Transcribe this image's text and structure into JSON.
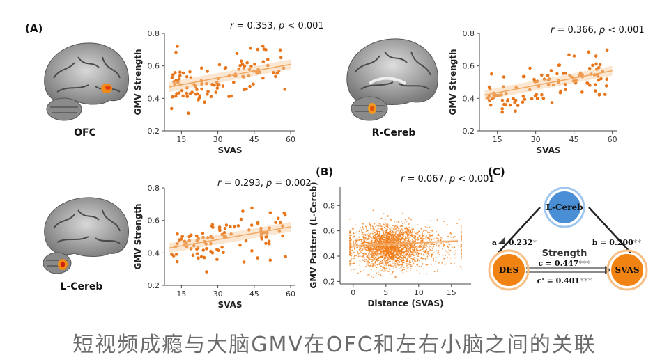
{
  "panels": {
    "A": {
      "letter": "(A)"
    },
    "B": {
      "letter": "(B)"
    },
    "C": {
      "letter": "(C)"
    }
  },
  "brains": [
    {
      "label": "OFC"
    },
    {
      "label": "R-Cereb"
    },
    {
      "label": "L-Cereb"
    }
  ],
  "scatters": [
    {
      "stat": {
        "r_label": "r",
        "r_value": "= 0.353,",
        "p_label": "p",
        "p_value": "< 0.001"
      },
      "xlabel": "SVAS",
      "ylabel": "GMV Strength"
    },
    {
      "stat": {
        "r_label": "r",
        "r_value": "= 0.366,",
        "p_label": "p",
        "p_value": "< 0.001"
      },
      "xlabel": "SVAS",
      "ylabel": "GMV Strength"
    },
    {
      "stat": {
        "r_label": "r",
        "r_value": "= 0.293,",
        "p_label": "p",
        "p_value": "= 0.002"
      },
      "xlabel": "SVAS",
      "ylabel": "GMV Strength"
    },
    {
      "stat": {
        "r_label": "r",
        "r_value": "= 0.067,",
        "p_label": "p",
        "p_value": "< 0.001"
      },
      "xlabel": "Distance (SVAS)",
      "ylabel": "GMV Pattern (L-Cereb)"
    }
  ],
  "chart_data": [
    {
      "type": "scatter",
      "title": "",
      "xlabel": "SVAS",
      "ylabel": "GMV Strength",
      "xlim": [
        8,
        62
      ],
      "ylim": [
        0.2,
        0.8
      ],
      "xticks": [
        "15",
        "30",
        "45",
        "60"
      ],
      "yticks": [
        "0.2",
        "0.4",
        "0.6",
        "0.8"
      ],
      "fit": {
        "x": [
          10,
          60
        ],
        "y": [
          0.47,
          0.61
        ]
      },
      "color": "#e8751a",
      "seed": 11,
      "n": 110,
      "x_range": [
        10,
        58
      ],
      "y_center": 0.53,
      "y_spread": 0.07,
      "slope": 0.0028
    },
    {
      "type": "scatter",
      "title": "",
      "xlabel": "SVAS",
      "ylabel": "GMV Strength",
      "xlim": [
        8,
        62
      ],
      "ylim": [
        0.2,
        0.8
      ],
      "xticks": [
        "15",
        "30",
        "45",
        "60"
      ],
      "yticks": [
        "0.2",
        "0.4",
        "0.6",
        "0.8"
      ],
      "fit": {
        "x": [
          10,
          60
        ],
        "y": [
          0.42,
          0.57
        ]
      },
      "color": "#e8751a",
      "seed": 23,
      "n": 110,
      "x_range": [
        10,
        58
      ],
      "y_center": 0.49,
      "y_spread": 0.06,
      "slope": 0.003
    },
    {
      "type": "scatter",
      "title": "",
      "xlabel": "SVAS",
      "ylabel": "GMV Strength",
      "xlim": [
        8,
        62
      ],
      "ylim": [
        0.2,
        0.8
      ],
      "xticks": [
        "15",
        "30",
        "45",
        "60"
      ],
      "yticks": [
        "0.2",
        "0.4",
        "0.6",
        "0.8"
      ],
      "fit": {
        "x": [
          10,
          60
        ],
        "y": [
          0.43,
          0.56
        ]
      },
      "color": "#e8751a",
      "seed": 37,
      "n": 100,
      "x_range": [
        10,
        58
      ],
      "y_center": 0.48,
      "y_spread": 0.07,
      "slope": 0.0026
    },
    {
      "type": "scatter",
      "title": "",
      "xlabel": "Distance (SVAS)",
      "ylabel": "GMV Pattern (L-Cereb)",
      "xlim": [
        -2,
        18
      ],
      "ylim": [
        0.18,
        0.95
      ],
      "xticks": [
        "0",
        "5",
        "10",
        "15"
      ],
      "yticks": [
        "0.2",
        "0.4",
        "0.6",
        "0.8"
      ],
      "fit": {
        "x": [
          0,
          16
        ],
        "y": [
          0.48,
          0.52
        ]
      },
      "color": "#f07b14",
      "seed": 53,
      "n": 2600,
      "x_center": 5,
      "x_spread": 2.6,
      "y_center": 0.48,
      "y_spread": 0.085
    }
  ],
  "mediation": {
    "nodes": {
      "top": "L-Cereb",
      "left": "DES",
      "right": "SVAS"
    },
    "center_label": "Strength",
    "paths": {
      "a": {
        "text": "a = 0.232",
        "stars": "*"
      },
      "b": {
        "text": "b = 0.200",
        "stars": "**"
      },
      "c": {
        "text": "c = 0.447",
        "stars": "***"
      },
      "c_prime": {
        "text": "c' = 0.401",
        "stars": "***"
      }
    },
    "colors": {
      "top_fill": "#4a8fd6",
      "top_ring": "#9fc6ef",
      "side_fill": "#f08312",
      "side_ring": "#f7bf83",
      "border": "#e8a04f"
    }
  },
  "caption": "短视频成瘾与大脑GMV在OFC和左右小脑之间的关联"
}
